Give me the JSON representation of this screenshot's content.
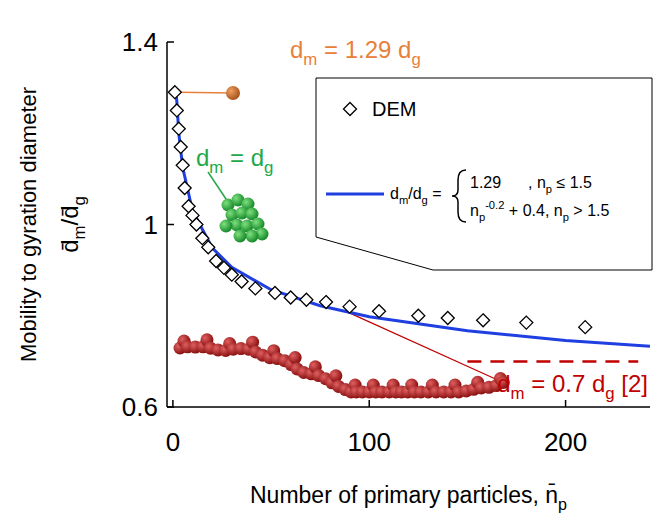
{
  "chart_data": {
    "type": "scatter",
    "xlim": [
      -3,
      243
    ],
    "ylim": [
      0.6,
      1.4
    ],
    "xticks": [
      0,
      100,
      200
    ],
    "yticks": [
      0.6,
      1,
      1.4
    ],
    "x_label": [
      {
        "t": "Number of primary particles, n̄"
      },
      {
        "t": "p",
        "sub": true
      }
    ],
    "y_label": [
      [
        {
          "t": "Mobility to gyration diameter"
        }
      ],
      [
        {
          "t": "d̄"
        },
        {
          "t": "m",
          "sub": true
        },
        {
          "t": "/d̄"
        },
        {
          "t": "g",
          "sub": true
        }
      ]
    ],
    "legend": "upper right",
    "series": [
      {
        "name": "DEM",
        "type": "scatter",
        "marker": "diamond",
        "color": "#000000",
        "x": [
          1,
          2,
          3,
          4,
          5,
          6,
          8,
          10,
          12,
          15,
          18,
          22,
          26,
          30,
          35,
          42,
          52,
          60,
          68,
          78,
          90,
          105,
          125,
          140,
          158,
          180,
          210
        ],
        "values": [
          1.29,
          1.25,
          1.21,
          1.17,
          1.13,
          1.08,
          1.04,
          1.02,
          1.0,
          0.97,
          0.95,
          0.92,
          0.905,
          0.89,
          0.875,
          0.86,
          0.85,
          0.84,
          0.835,
          0.83,
          0.82,
          0.81,
          0.8,
          0.795,
          0.79,
          0.785,
          0.775
        ]
      },
      {
        "type": "line",
        "line_style": "solid",
        "color": "#1f3fe0",
        "x": [
          0,
          1.5,
          2,
          3,
          5,
          10,
          20,
          30,
          50,
          75,
          100,
          150,
          200,
          243
        ],
        "values": [
          1.29,
          1.29,
          1.27,
          1.2,
          1.125,
          1.03,
          0.949,
          0.906,
          0.857,
          0.822,
          0.798,
          0.767,
          0.746,
          0.733
        ]
      },
      {
        "type": "line",
        "line_style": "dashed",
        "color": "#c00000",
        "x": [
          150,
          237
        ],
        "values": [
          0.7,
          0.7
        ]
      }
    ],
    "legend_formula": {
      "lhs": [
        {
          "t": "d"
        },
        {
          "t": "m",
          "sub": true
        },
        {
          "t": "/d"
        },
        {
          "t": "g",
          "sub": true
        },
        {
          "t": " ="
        }
      ],
      "cases": [
        [
          [
            {
              "t": "1.29"
            }
          ],
          [
            {
              "t": ", n"
            },
            {
              "t": "p",
              "sub": true
            },
            {
              "t": " ≤ 1.5"
            }
          ]
        ],
        [
          [
            {
              "t": "n"
            },
            {
              "t": "p",
              "sub": true
            },
            {
              "t": "-0.2",
              "sup": true
            },
            {
              "t": " + 0.4, n"
            },
            {
              "t": "p",
              "sub": true
            },
            {
              "t": " > 1.5"
            }
          ]
        ]
      ]
    },
    "annotations": [
      {
        "color": "#e8803a",
        "runs": [
          {
            "t": "d"
          },
          {
            "t": "m",
            "sub": true
          },
          {
            "t": " = 1.29 d"
          },
          {
            "t": "g",
            "sub": true
          }
        ]
      },
      {
        "color": "#22a84a",
        "runs": [
          {
            "t": "d"
          },
          {
            "t": "m",
            "sub": true
          },
          {
            "t": " = d"
          },
          {
            "t": "g",
            "sub": true
          }
        ]
      },
      {
        "color": "#c00000",
        "runs": [
          {
            "t": "d"
          },
          {
            "t": "m",
            "sub": true
          },
          {
            "t": " = 0.7 d"
          },
          {
            "t": "g",
            "sub": true
          },
          {
            "t": " [2]"
          }
        ]
      }
    ]
  }
}
